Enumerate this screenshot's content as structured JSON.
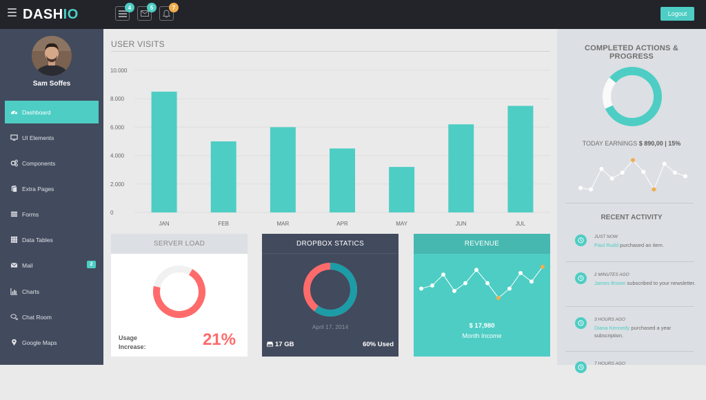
{
  "header": {
    "logo_main": "DASH",
    "logo_accent": "IO",
    "badges": {
      "tasks": "4",
      "mail": "5",
      "notifications": "7"
    },
    "logout_label": "Logout"
  },
  "sidebar": {
    "user_name": "Sam Soffes",
    "items": [
      {
        "label": "Dashboard",
        "icon": "dashboard-icon",
        "active": true
      },
      {
        "label": "UI Elements",
        "icon": "desktop-icon"
      },
      {
        "label": "Components",
        "icon": "cogs-icon"
      },
      {
        "label": "Extra Pages",
        "icon": "book-icon"
      },
      {
        "label": "Forms",
        "icon": "tasks-icon"
      },
      {
        "label": "Data Tables",
        "icon": "table-icon"
      },
      {
        "label": "Mail",
        "icon": "envelope-icon",
        "badge": "2"
      },
      {
        "label": "Charts",
        "icon": "bar-chart-icon"
      },
      {
        "label": "Chat Room",
        "icon": "comments-icon"
      },
      {
        "label": "Google Maps",
        "icon": "map-marker-icon"
      }
    ]
  },
  "main": {
    "title": "USER VISITS"
  },
  "chart_data": {
    "type": "bar",
    "categories": [
      "JAN",
      "FEB",
      "MAR",
      "APR",
      "MAY",
      "JUN",
      "JUL"
    ],
    "values": [
      8500,
      5000,
      6000,
      4500,
      3200,
      6200,
      7500
    ],
    "ylim": [
      0,
      10000
    ],
    "yticks": [
      "0",
      "2.000",
      "4.000",
      "6.000",
      "8.000",
      "10.000"
    ],
    "ytick_values": [
      0,
      2000,
      4000,
      6000,
      8000,
      10000
    ],
    "grid": true,
    "bar_color": "#4ecdc4"
  },
  "panels": {
    "server_load": {
      "title": "SERVER LOAD",
      "usage_label_1": "Usage",
      "usage_label_2": "Increase:",
      "usage_value": "21%",
      "ring_fraction": 0.7
    },
    "dropbox": {
      "title": "DROPBOX STATICS",
      "date": "April 17, 2014",
      "storage": "17 GB",
      "used": "60% Used",
      "ring_fraction": 0.6
    },
    "revenue": {
      "title": "REVENUE",
      "amount": "$ 17,980",
      "label": "Month Income",
      "sparkline": [
        40,
        44,
        58,
        37,
        47,
        64,
        47,
        28,
        40,
        60,
        49,
        68
      ]
    }
  },
  "right": {
    "title_1": "COMPLETED ACTIONS &",
    "title_2": "PROGRESS",
    "progress_fraction": 0.82,
    "earnings_label": "TODAY EARNINGS",
    "earnings_value": "$ 890,00 | 15%",
    "sparkline": [
      32,
      30,
      58,
      45,
      53,
      70,
      54,
      30,
      65,
      53,
      48
    ],
    "recent_title": "RECENT ACTIVITY",
    "activity": [
      {
        "when": "JUST NOW",
        "who": "Paul Rudd",
        "text": " purchased an item."
      },
      {
        "when": "2 MINUTES AGO",
        "who": "James Brown",
        "text": " subscribed to your newsletter."
      },
      {
        "when": "3 HOURS AGO",
        "who": "Diana Kennedy",
        "text": " purchased a year subscription."
      },
      {
        "when": "7 HOURS AGO",
        "who": "",
        "text": ""
      }
    ]
  },
  "colors": {
    "accent": "#4ecdc4",
    "danger": "#ff6b6b",
    "warning": "#f0ad4e",
    "sidebar": "#424a5d",
    "header": "#22242a"
  }
}
